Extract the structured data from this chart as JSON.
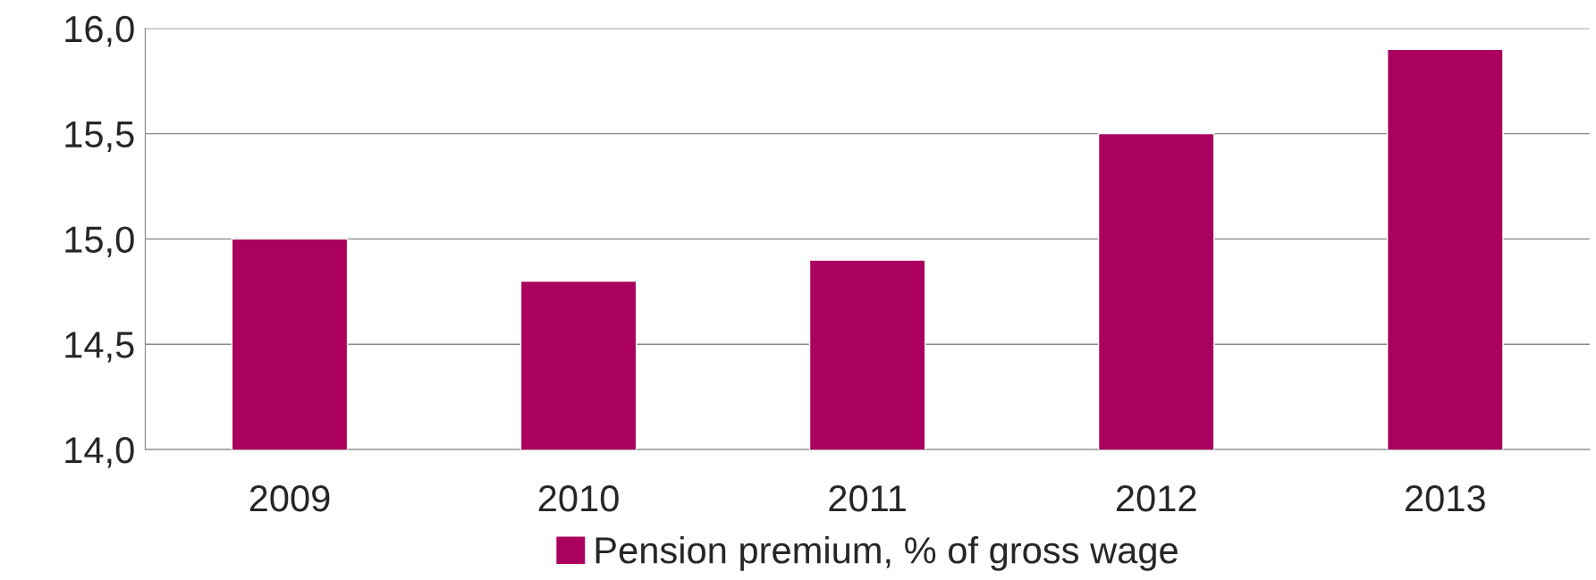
{
  "chart_data": {
    "type": "bar",
    "categories": [
      "2009",
      "2010",
      "2011",
      "2012",
      "2013"
    ],
    "series": [
      {
        "name": "Pension premium, % of gross wage",
        "color": "#aa005e",
        "values": [
          15.0,
          14.8,
          14.9,
          15.5,
          15.9
        ]
      }
    ],
    "ylim": [
      14,
      16
    ],
    "yticks": [
      {
        "value": 14,
        "label": "14,0"
      },
      {
        "value": 14.5,
        "label": "14,5"
      },
      {
        "value": 15,
        "label": "15,0"
      },
      {
        "value": 15.5,
        "label": "15,5"
      },
      {
        "value": 16,
        "label": "16,0"
      }
    ],
    "grid": "y",
    "legend": "bottom"
  }
}
